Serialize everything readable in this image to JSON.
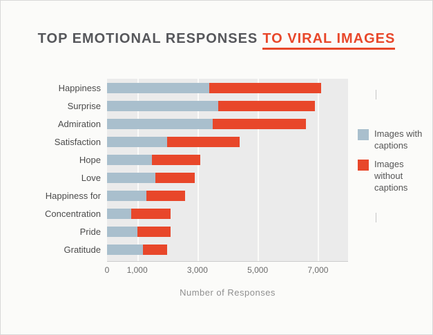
{
  "title": {
    "main": "TOP EMOTIONAL RESPONSES",
    "accent": "TO VIRAL IMAGES"
  },
  "colors": {
    "with_captions": "#a9bfcd",
    "without_captions": "#e8472a",
    "accent": "#e8472a",
    "plot_background": "#ebebeb"
  },
  "chart_data": {
    "type": "bar",
    "orientation": "horizontal",
    "stacked": true,
    "title": "TOP EMOTIONAL RESPONSES TO VIRAL IMAGES",
    "xlabel": "Number of Responses",
    "xlim": [
      0,
      8000
    ],
    "x_ticks": [
      {
        "value": 0,
        "label": "0"
      },
      {
        "value": 1000,
        "label": "1,000"
      },
      {
        "value": 3000,
        "label": "3,000"
      },
      {
        "value": 5000,
        "label": "5,000"
      },
      {
        "value": 7000,
        "label": "7,000"
      }
    ],
    "categories": [
      "Happiness",
      "Surprise",
      "Admiration",
      "Satisfaction",
      "Hope",
      "Love",
      "Happiness for",
      "Concentration",
      "Pride",
      "Gratitude"
    ],
    "series": [
      {
        "name": "Images with captions",
        "color": "#a9bfcd",
        "values": [
          3400,
          3700,
          3500,
          2000,
          1500,
          1600,
          1300,
          800,
          1000,
          1200
        ]
      },
      {
        "name": "Images without captions",
        "color": "#e8472a",
        "values": [
          3700,
          3200,
          3100,
          2400,
          1600,
          1300,
          1300,
          1300,
          1100,
          800
        ]
      }
    ],
    "legend_position": "right",
    "grid": "vertical light gridlines at labeled ticks"
  }
}
